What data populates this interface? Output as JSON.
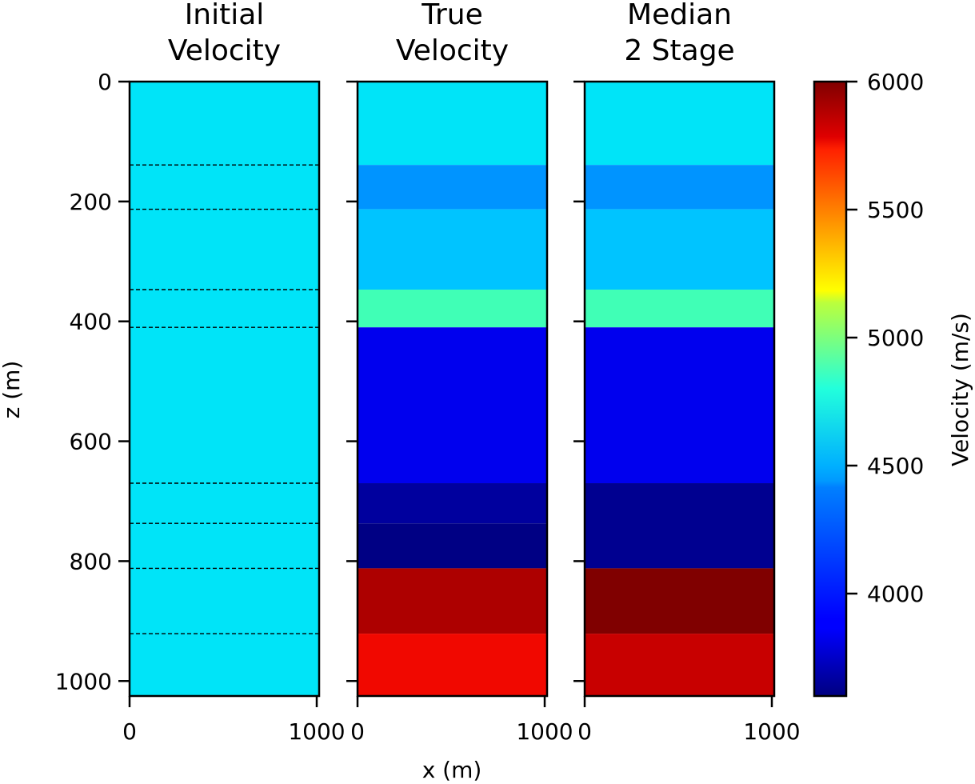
{
  "chart_data": {
    "type": "heatmap",
    "x_label": "x (m)",
    "y_label": "z (m)",
    "ylim": [
      1025,
      0
    ],
    "y_ticks": [
      "0",
      "200",
      "400",
      "600",
      "800",
      "1000"
    ],
    "y_tick_values": [
      0,
      200,
      400,
      600,
      800,
      1000
    ],
    "panels": [
      {
        "title_lines": [
          "Initial",
          "Velocity"
        ],
        "x_tick_labels": [
          "0",
          "1000"
        ],
        "layers": [
          {
            "top": 0,
            "bottom": 1025,
            "color": "#00e4f8"
          }
        ],
        "dashed_boundaries": [
          139,
          213,
          347,
          410,
          670,
          737,
          812,
          921
        ]
      },
      {
        "title_lines": [
          "True",
          "Velocity"
        ],
        "x_tick_labels": [
          "0",
          "1000"
        ],
        "layers": [
          {
            "top": 0,
            "bottom": 139,
            "color": "#00e4f8"
          },
          {
            "top": 139,
            "bottom": 213,
            "color": "#0094ff"
          },
          {
            "top": 213,
            "bottom": 347,
            "color": "#00c4ff"
          },
          {
            "top": 347,
            "bottom": 410,
            "color": "#40ffb6"
          },
          {
            "top": 410,
            "bottom": 670,
            "color": "#0000ee"
          },
          {
            "top": 670,
            "bottom": 737,
            "color": "#00009e"
          },
          {
            "top": 737,
            "bottom": 812,
            "color": "#000084"
          },
          {
            "top": 812,
            "bottom": 921,
            "color": "#ad0000"
          },
          {
            "top": 921,
            "bottom": 1025,
            "color": "#f10800"
          }
        ],
        "dashed_boundaries": []
      },
      {
        "title_lines": [
          "Median",
          "2 Stage"
        ],
        "x_tick_labels": [
          "0",
          "1000"
        ],
        "layers": [
          {
            "top": 0,
            "bottom": 139,
            "color": "#00e4f8"
          },
          {
            "top": 139,
            "bottom": 213,
            "color": "#0094ff"
          },
          {
            "top": 213,
            "bottom": 347,
            "color": "#00c4ff"
          },
          {
            "top": 347,
            "bottom": 410,
            "color": "#40ffb6"
          },
          {
            "top": 410,
            "bottom": 670,
            "color": "#0000ee"
          },
          {
            "top": 670,
            "bottom": 812,
            "color": "#000090"
          },
          {
            "top": 812,
            "bottom": 921,
            "color": "#800000"
          },
          {
            "top": 921,
            "bottom": 1025,
            "color": "#c80000"
          }
        ],
        "dashed_boundaries": []
      }
    ],
    "colorbar": {
      "label": "Velocity (m/s)",
      "min": 3600,
      "max": 6000,
      "ticks": [
        "4000",
        "4500",
        "5000",
        "5500",
        "6000"
      ],
      "tick_values": [
        4000,
        4500,
        5000,
        5500,
        6000
      ],
      "colormap": "jet"
    }
  }
}
